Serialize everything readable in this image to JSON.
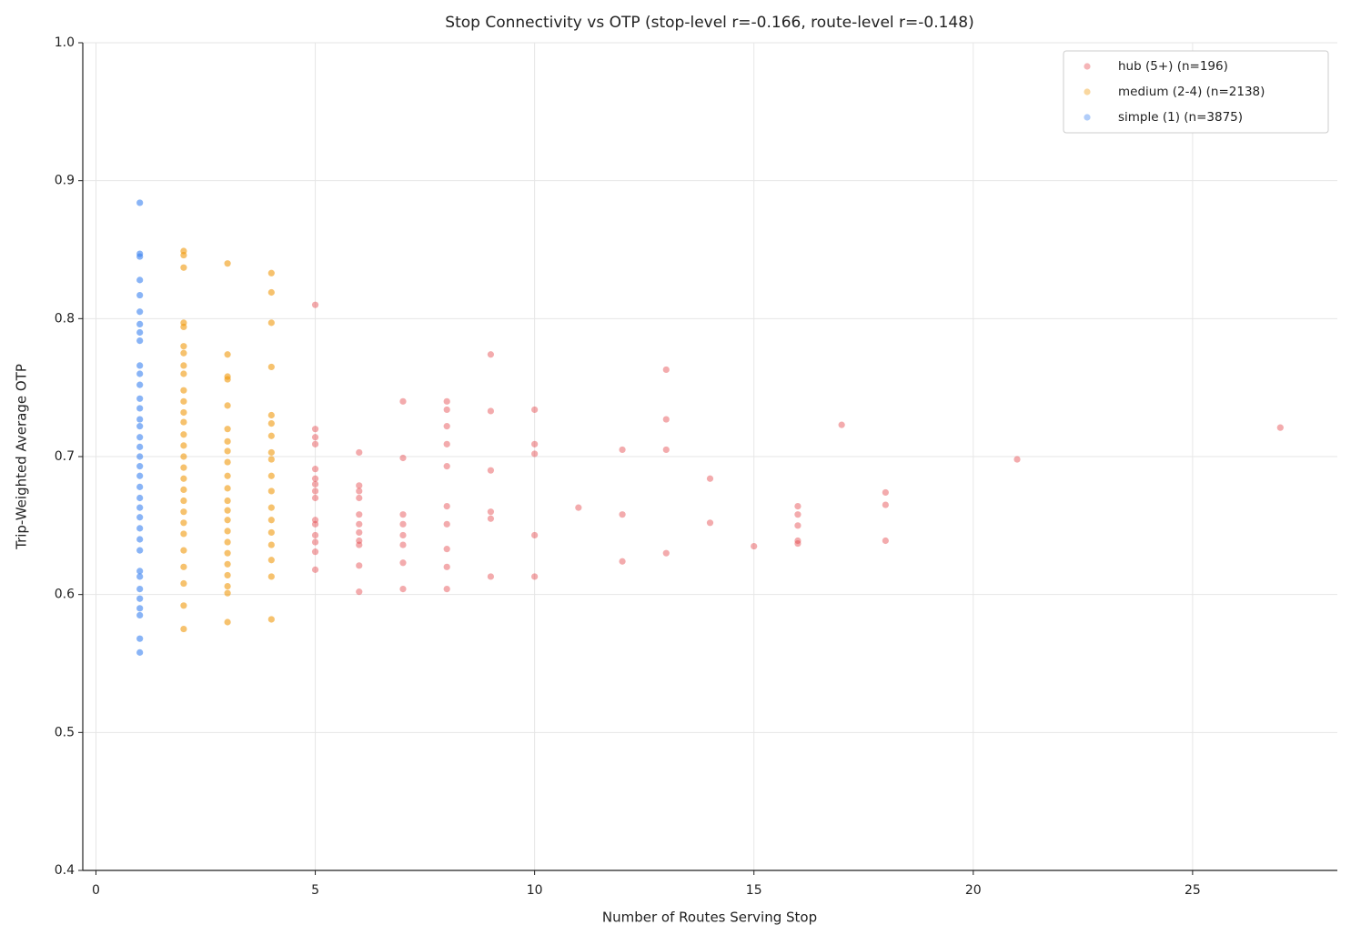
{
  "chart_data": {
    "type": "scatter",
    "title": "Stop Connectivity vs OTP (stop-level r=-0.166, route-level r=-0.148)",
    "x_label": "Number of Routes Serving Stop",
    "y_label": "Trip-Weighted Average OTP",
    "xlim": [
      -0.3,
      28.3
    ],
    "ylim": [
      0.4,
      1.0
    ],
    "xticks": [
      0,
      5,
      10,
      15,
      20,
      25
    ],
    "yticks": [
      0.4,
      0.5,
      0.6,
      0.7,
      0.8,
      0.9,
      {
        "value": 1.0,
        "label": "1.0"
      }
    ],
    "grid": true,
    "legend": "upper right",
    "series": [
      {
        "name": "hub (5+) (n=196)",
        "color": "#e5454a",
        "x": [
          5,
          5,
          5,
          5,
          5,
          5,
          5,
          5,
          5,
          5,
          5,
          5,
          5,
          5,
          5,
          6,
          6,
          6,
          6,
          6,
          6,
          6,
          6,
          6,
          6,
          6,
          7,
          7,
          7,
          7,
          7,
          7,
          7,
          7,
          8,
          8,
          8,
          8,
          8,
          8,
          8,
          8,
          8,
          8,
          9,
          9,
          9,
          9,
          9,
          9,
          10,
          10,
          10,
          10,
          10,
          11,
          12,
          12,
          12,
          13,
          13,
          13,
          13,
          14,
          14,
          15,
          16,
          16,
          16,
          16,
          16,
          17,
          18,
          18,
          18,
          21,
          27
        ],
        "values": [
          0.81,
          0.72,
          0.714,
          0.709,
          0.691,
          0.684,
          0.68,
          0.675,
          0.67,
          0.654,
          0.651,
          0.643,
          0.638,
          0.631,
          0.618,
          0.703,
          0.679,
          0.675,
          0.67,
          0.658,
          0.651,
          0.645,
          0.639,
          0.636,
          0.621,
          0.602,
          0.74,
          0.699,
          0.658,
          0.651,
          0.643,
          0.636,
          0.623,
          0.604,
          0.74,
          0.734,
          0.722,
          0.709,
          0.693,
          0.664,
          0.651,
          0.633,
          0.62,
          0.604,
          0.774,
          0.733,
          0.69,
          0.66,
          0.655,
          0.613,
          0.734,
          0.709,
          0.702,
          0.643,
          0.613,
          0.663,
          0.705,
          0.658,
          0.624,
          0.763,
          0.727,
          0.705,
          0.63,
          0.684,
          0.652,
          0.635,
          0.664,
          0.658,
          0.65,
          0.639,
          0.637,
          0.723,
          0.674,
          0.665,
          0.639,
          0.698,
          0.721
        ]
      },
      {
        "name": "medium (2-4) (n=2138)",
        "color": "#f09a0e",
        "x": [
          2,
          2,
          2,
          2,
          2,
          2,
          2,
          2,
          2,
          2,
          2,
          2,
          2,
          2,
          2,
          2,
          2,
          2,
          2,
          2,
          2,
          2,
          2,
          2,
          2,
          2,
          2,
          2,
          3,
          3,
          3,
          3,
          3,
          3,
          3,
          3,
          3,
          3,
          3,
          3,
          3,
          3,
          3,
          3,
          3,
          3,
          3,
          3,
          3,
          3,
          4,
          4,
          4,
          4,
          4,
          4,
          4,
          4,
          4,
          4,
          4,
          4,
          4,
          4,
          4,
          4,
          4,
          4
        ],
        "values": [
          0.849,
          0.846,
          0.837,
          0.797,
          0.794,
          0.78,
          0.775,
          0.766,
          0.76,
          0.748,
          0.74,
          0.732,
          0.725,
          0.716,
          0.708,
          0.7,
          0.692,
          0.684,
          0.676,
          0.668,
          0.66,
          0.652,
          0.644,
          0.632,
          0.62,
          0.608,
          0.592,
          0.575,
          0.84,
          0.774,
          0.758,
          0.756,
          0.737,
          0.72,
          0.711,
          0.704,
          0.696,
          0.686,
          0.677,
          0.668,
          0.661,
          0.654,
          0.646,
          0.638,
          0.63,
          0.622,
          0.614,
          0.606,
          0.601,
          0.58,
          0.833,
          0.819,
          0.797,
          0.765,
          0.73,
          0.724,
          0.715,
          0.703,
          0.698,
          0.686,
          0.675,
          0.663,
          0.654,
          0.645,
          0.636,
          0.625,
          0.613,
          0.582
        ]
      },
      {
        "name": "simple (1) (n=3875)",
        "color": "#3b82f0",
        "x": [
          1,
          1,
          1,
          1,
          1,
          1,
          1,
          1,
          1,
          1,
          1,
          1,
          1,
          1,
          1,
          1,
          1,
          1,
          1,
          1,
          1,
          1,
          1,
          1,
          1,
          1,
          1,
          1,
          1,
          1,
          1,
          1,
          1,
          1,
          1,
          1
        ],
        "values": [
          0.884,
          0.847,
          0.845,
          0.828,
          0.817,
          0.805,
          0.796,
          0.79,
          0.784,
          0.766,
          0.76,
          0.752,
          0.742,
          0.735,
          0.727,
          0.722,
          0.714,
          0.707,
          0.7,
          0.693,
          0.686,
          0.678,
          0.67,
          0.663,
          0.656,
          0.648,
          0.64,
          0.632,
          0.617,
          0.613,
          0.604,
          0.597,
          0.59,
          0.585,
          0.568,
          0.558
        ]
      }
    ]
  }
}
